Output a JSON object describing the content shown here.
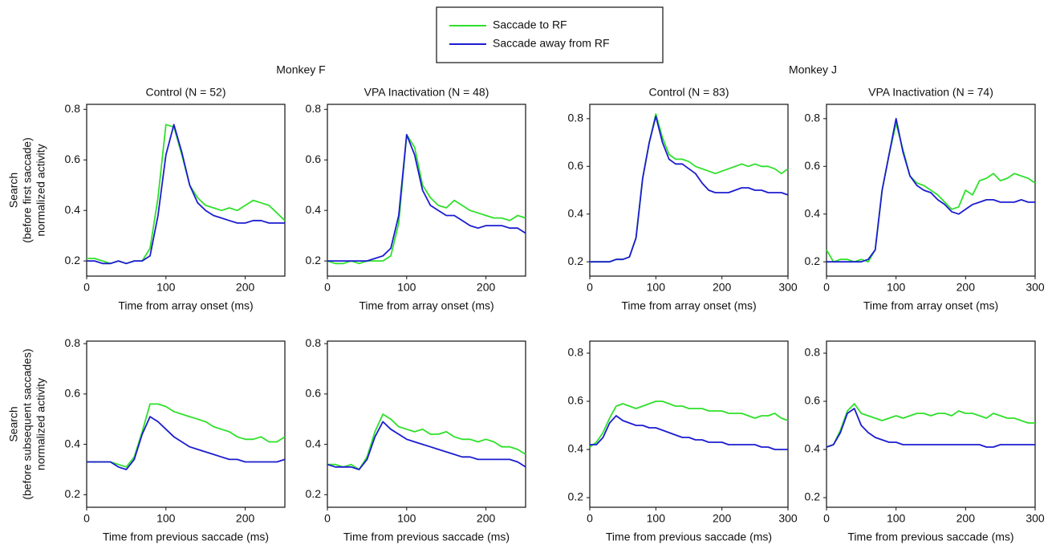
{
  "groups": [
    "Monkey F",
    "Monkey J"
  ],
  "chart_data": [
    {
      "type": "line",
      "title": "Control (N = 52)",
      "xlabel": "Time from array onset (ms)",
      "ylabel": [
        "Search",
        "(before first saccade)",
        "normalized activity"
      ],
      "x": [
        0,
        10,
        20,
        30,
        40,
        50,
        60,
        70,
        80,
        90,
        100,
        110,
        120,
        130,
        140,
        150,
        160,
        170,
        180,
        190,
        200,
        210,
        220,
        230,
        240,
        250
      ],
      "series": [
        {
          "name": "Saccade to RF",
          "color": "#2ee02a",
          "values": [
            0.21,
            0.21,
            0.2,
            0.19,
            0.2,
            0.19,
            0.2,
            0.2,
            0.25,
            0.45,
            0.74,
            0.73,
            0.62,
            0.5,
            0.45,
            0.42,
            0.41,
            0.4,
            0.41,
            0.4,
            0.42,
            0.44,
            0.43,
            0.42,
            0.39,
            0.36
          ]
        },
        {
          "name": "Saccade away from RF",
          "color": "#1c1cd0",
          "values": [
            0.2,
            0.2,
            0.19,
            0.19,
            0.2,
            0.19,
            0.2,
            0.2,
            0.22,
            0.38,
            0.62,
            0.74,
            0.63,
            0.5,
            0.43,
            0.4,
            0.38,
            0.37,
            0.36,
            0.35,
            0.35,
            0.36,
            0.36,
            0.35,
            0.35,
            0.35
          ]
        }
      ],
      "xlim": [
        0,
        250
      ],
      "xticks": [
        0,
        100,
        200
      ],
      "ylim": [
        0.14,
        0.82
      ],
      "yticks": [
        0.2,
        0.4,
        0.6,
        0.8
      ]
    },
    {
      "type": "line",
      "title": "VPA Inactivation (N = 48)",
      "xlabel": "Time from array onset (ms)",
      "x": [
        0,
        10,
        20,
        30,
        40,
        50,
        60,
        70,
        80,
        90,
        100,
        110,
        120,
        130,
        140,
        150,
        160,
        170,
        180,
        190,
        200,
        210,
        220,
        230,
        240,
        250
      ],
      "series": [
        {
          "name": "Saccade to RF",
          "color": "#2ee02a",
          "values": [
            0.2,
            0.19,
            0.19,
            0.2,
            0.19,
            0.2,
            0.2,
            0.2,
            0.22,
            0.35,
            0.7,
            0.65,
            0.5,
            0.45,
            0.42,
            0.41,
            0.44,
            0.42,
            0.4,
            0.39,
            0.38,
            0.37,
            0.37,
            0.36,
            0.38,
            0.37
          ]
        },
        {
          "name": "Saccade away from RF",
          "color": "#1c1cd0",
          "values": [
            0.2,
            0.2,
            0.2,
            0.2,
            0.2,
            0.2,
            0.21,
            0.22,
            0.25,
            0.38,
            0.7,
            0.62,
            0.48,
            0.42,
            0.4,
            0.38,
            0.38,
            0.36,
            0.34,
            0.33,
            0.34,
            0.34,
            0.34,
            0.33,
            0.33,
            0.31
          ]
        }
      ],
      "xlim": [
        0,
        250
      ],
      "xticks": [
        0,
        100,
        200
      ],
      "ylim": [
        0.14,
        0.82
      ],
      "yticks": [
        0.2,
        0.4,
        0.6,
        0.8
      ]
    },
    {
      "type": "line",
      "title": "Control (N = 83)",
      "xlabel": "Time from array onset (ms)",
      "x": [
        0,
        10,
        20,
        30,
        40,
        50,
        60,
        70,
        80,
        90,
        100,
        110,
        120,
        130,
        140,
        150,
        160,
        170,
        180,
        190,
        200,
        210,
        220,
        230,
        240,
        250,
        260,
        270,
        280,
        290,
        300
      ],
      "series": [
        {
          "name": "Saccade to RF",
          "color": "#2ee02a",
          "values": [
            0.2,
            0.2,
            0.2,
            0.2,
            0.21,
            0.21,
            0.22,
            0.3,
            0.55,
            0.7,
            0.82,
            0.72,
            0.65,
            0.63,
            0.63,
            0.62,
            0.6,
            0.59,
            0.58,
            0.57,
            0.58,
            0.59,
            0.6,
            0.61,
            0.6,
            0.61,
            0.6,
            0.6,
            0.59,
            0.57,
            0.59
          ]
        },
        {
          "name": "Saccade away from RF",
          "color": "#1c1cd0",
          "values": [
            0.2,
            0.2,
            0.2,
            0.2,
            0.21,
            0.21,
            0.22,
            0.3,
            0.55,
            0.7,
            0.81,
            0.7,
            0.63,
            0.61,
            0.61,
            0.59,
            0.57,
            0.53,
            0.5,
            0.49,
            0.49,
            0.49,
            0.5,
            0.51,
            0.51,
            0.5,
            0.5,
            0.49,
            0.49,
            0.49,
            0.48
          ]
        }
      ],
      "xlim": [
        0,
        300
      ],
      "xticks": [
        0,
        100,
        200,
        300
      ],
      "ylim": [
        0.14,
        0.86
      ],
      "yticks": [
        0.2,
        0.4,
        0.6,
        0.8
      ]
    },
    {
      "type": "line",
      "title": "VPA Inactivation (N = 74)",
      "xlabel": "Time from array onset (ms)",
      "x": [
        0,
        10,
        20,
        30,
        40,
        50,
        60,
        70,
        80,
        90,
        100,
        110,
        120,
        130,
        140,
        150,
        160,
        170,
        180,
        190,
        200,
        210,
        220,
        230,
        240,
        250,
        260,
        270,
        280,
        290,
        300
      ],
      "series": [
        {
          "name": "Saccade to RF",
          "color": "#2ee02a",
          "values": [
            0.25,
            0.2,
            0.21,
            0.21,
            0.2,
            0.21,
            0.2,
            0.25,
            0.5,
            0.65,
            0.78,
            0.67,
            0.56,
            0.53,
            0.52,
            0.5,
            0.48,
            0.45,
            0.42,
            0.43,
            0.5,
            0.48,
            0.54,
            0.55,
            0.57,
            0.54,
            0.55,
            0.57,
            0.56,
            0.55,
            0.53
          ]
        },
        {
          "name": "Saccade away from RF",
          "color": "#1c1cd0",
          "values": [
            0.2,
            0.2,
            0.2,
            0.2,
            0.2,
            0.2,
            0.21,
            0.25,
            0.5,
            0.65,
            0.8,
            0.66,
            0.56,
            0.52,
            0.5,
            0.49,
            0.46,
            0.44,
            0.41,
            0.4,
            0.42,
            0.44,
            0.45,
            0.46,
            0.46,
            0.45,
            0.45,
            0.45,
            0.46,
            0.45,
            0.45
          ]
        }
      ],
      "xlim": [
        0,
        300
      ],
      "xticks": [
        0,
        100,
        200,
        300
      ],
      "ylim": [
        0.14,
        0.86
      ],
      "yticks": [
        0.2,
        0.4,
        0.6,
        0.8
      ]
    },
    {
      "type": "line",
      "xlabel": "Time from previous saccade (ms)",
      "ylabel": [
        "Search",
        "(before subsequent saccades)",
        "normalized activity"
      ],
      "x": [
        0,
        10,
        20,
        30,
        40,
        50,
        60,
        70,
        80,
        90,
        100,
        110,
        120,
        130,
        140,
        150,
        160,
        170,
        180,
        190,
        200,
        210,
        220,
        230,
        240,
        250
      ],
      "series": [
        {
          "name": "Saccade to RF",
          "color": "#2ee02a",
          "values": [
            0.33,
            0.33,
            0.33,
            0.33,
            0.32,
            0.31,
            0.35,
            0.45,
            0.56,
            0.56,
            0.55,
            0.53,
            0.52,
            0.51,
            0.5,
            0.49,
            0.47,
            0.46,
            0.45,
            0.43,
            0.42,
            0.42,
            0.43,
            0.41,
            0.41,
            0.43
          ]
        },
        {
          "name": "Saccade away from RF",
          "color": "#1c1cd0",
          "values": [
            0.33,
            0.33,
            0.33,
            0.33,
            0.31,
            0.3,
            0.34,
            0.44,
            0.51,
            0.49,
            0.46,
            0.43,
            0.41,
            0.39,
            0.38,
            0.37,
            0.36,
            0.35,
            0.34,
            0.34,
            0.33,
            0.33,
            0.33,
            0.33,
            0.33,
            0.34
          ]
        }
      ],
      "xlim": [
        0,
        250
      ],
      "xticks": [
        0,
        100,
        200
      ],
      "ylim": [
        0.15,
        0.81
      ],
      "yticks": [
        0.2,
        0.4,
        0.6,
        0.8
      ]
    },
    {
      "type": "line",
      "xlabel": "Time from previous saccade (ms)",
      "x": [
        0,
        10,
        20,
        30,
        40,
        50,
        60,
        70,
        80,
        90,
        100,
        110,
        120,
        130,
        140,
        150,
        160,
        170,
        180,
        190,
        200,
        210,
        220,
        230,
        240,
        250
      ],
      "series": [
        {
          "name": "Saccade to RF",
          "color": "#2ee02a",
          "values": [
            0.32,
            0.32,
            0.31,
            0.32,
            0.3,
            0.35,
            0.45,
            0.52,
            0.5,
            0.47,
            0.46,
            0.45,
            0.46,
            0.44,
            0.44,
            0.45,
            0.43,
            0.42,
            0.42,
            0.41,
            0.42,
            0.41,
            0.39,
            0.39,
            0.38,
            0.36
          ]
        },
        {
          "name": "Saccade away from RF",
          "color": "#1c1cd0",
          "values": [
            0.32,
            0.31,
            0.31,
            0.31,
            0.3,
            0.34,
            0.43,
            0.49,
            0.46,
            0.44,
            0.42,
            0.41,
            0.4,
            0.39,
            0.38,
            0.37,
            0.36,
            0.35,
            0.35,
            0.34,
            0.34,
            0.34,
            0.34,
            0.34,
            0.33,
            0.31
          ]
        }
      ],
      "xlim": [
        0,
        250
      ],
      "xticks": [
        0,
        100,
        200
      ],
      "ylim": [
        0.15,
        0.81
      ],
      "yticks": [
        0.2,
        0.4,
        0.6,
        0.8
      ]
    },
    {
      "type": "line",
      "xlabel": "Time from previous saccade (ms)",
      "x": [
        0,
        10,
        20,
        30,
        40,
        50,
        60,
        70,
        80,
        90,
        100,
        110,
        120,
        130,
        140,
        150,
        160,
        170,
        180,
        190,
        200,
        210,
        220,
        230,
        240,
        250,
        260,
        270,
        280,
        290,
        300
      ],
      "series": [
        {
          "name": "Saccade to RF",
          "color": "#2ee02a",
          "values": [
            0.41,
            0.43,
            0.47,
            0.53,
            0.58,
            0.59,
            0.58,
            0.57,
            0.58,
            0.59,
            0.6,
            0.6,
            0.59,
            0.58,
            0.58,
            0.57,
            0.57,
            0.57,
            0.56,
            0.56,
            0.56,
            0.55,
            0.55,
            0.55,
            0.54,
            0.53,
            0.54,
            0.54,
            0.55,
            0.53,
            0.52
          ]
        },
        {
          "name": "Saccade away from RF",
          "color": "#1c1cd0",
          "values": [
            0.42,
            0.42,
            0.45,
            0.51,
            0.54,
            0.52,
            0.51,
            0.5,
            0.5,
            0.49,
            0.49,
            0.48,
            0.47,
            0.46,
            0.45,
            0.45,
            0.44,
            0.44,
            0.43,
            0.43,
            0.43,
            0.42,
            0.42,
            0.42,
            0.42,
            0.42,
            0.41,
            0.41,
            0.4,
            0.4,
            0.4
          ]
        }
      ],
      "xlim": [
        0,
        300
      ],
      "xticks": [
        0,
        100,
        200,
        300
      ],
      "ylim": [
        0.16,
        0.85
      ],
      "yticks": [
        0.2,
        0.4,
        0.6,
        0.8
      ]
    },
    {
      "type": "line",
      "xlabel": "Time from previous saccade (ms)",
      "x": [
        0,
        10,
        20,
        30,
        40,
        50,
        60,
        70,
        80,
        90,
        100,
        110,
        120,
        130,
        140,
        150,
        160,
        170,
        180,
        190,
        200,
        210,
        220,
        230,
        240,
        250,
        260,
        270,
        280,
        290,
        300
      ],
      "series": [
        {
          "name": "Saccade to RF",
          "color": "#2ee02a",
          "values": [
            0.41,
            0.42,
            0.48,
            0.56,
            0.59,
            0.55,
            0.54,
            0.53,
            0.52,
            0.53,
            0.54,
            0.53,
            0.54,
            0.55,
            0.55,
            0.54,
            0.55,
            0.55,
            0.54,
            0.56,
            0.55,
            0.55,
            0.54,
            0.53,
            0.55,
            0.54,
            0.53,
            0.53,
            0.52,
            0.51,
            0.51
          ]
        },
        {
          "name": "Saccade away from RF",
          "color": "#1c1cd0",
          "values": [
            0.41,
            0.42,
            0.47,
            0.55,
            0.57,
            0.5,
            0.47,
            0.45,
            0.44,
            0.43,
            0.43,
            0.42,
            0.42,
            0.42,
            0.42,
            0.42,
            0.42,
            0.42,
            0.42,
            0.42,
            0.42,
            0.42,
            0.42,
            0.41,
            0.41,
            0.42,
            0.42,
            0.42,
            0.42,
            0.42,
            0.42
          ]
        }
      ],
      "xlim": [
        0,
        300
      ],
      "xticks": [
        0,
        100,
        200,
        300
      ],
      "ylim": [
        0.16,
        0.85
      ],
      "yticks": [
        0.2,
        0.4,
        0.6,
        0.8
      ]
    }
  ]
}
